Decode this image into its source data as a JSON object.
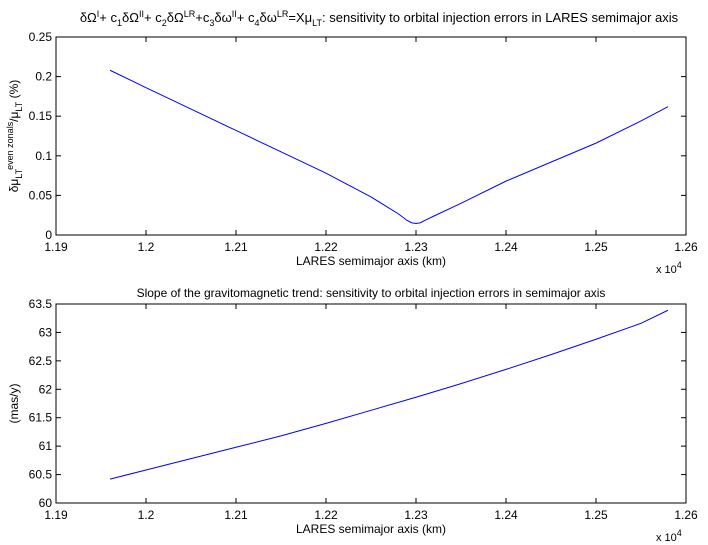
{
  "chart_data": [
    {
      "type": "line",
      "title_parts": [
        {
          "t": "δΩ"
        },
        {
          "t": "I",
          "sup": true
        },
        {
          "t": "+ c"
        },
        {
          "t": "1",
          "sub": true
        },
        {
          "t": "δΩ"
        },
        {
          "t": "II",
          "sup": true
        },
        {
          "t": "+ c"
        },
        {
          "t": "2",
          "sub": true
        },
        {
          "t": "δΩ"
        },
        {
          "t": "LR",
          "sup": true
        },
        {
          "t": "+c"
        },
        {
          "t": "3",
          "sub": true
        },
        {
          "t": "δω"
        },
        {
          "t": "II",
          "sup": true
        },
        {
          "t": "+ c"
        },
        {
          "t": "4",
          "sub": true
        },
        {
          "t": "δω"
        },
        {
          "t": "LR",
          "sup": true
        },
        {
          "t": "=Xμ"
        },
        {
          "t": "LT",
          "sub": true
        },
        {
          "t": ": sensitivity to orbital injection errors in LARES semimajor axis"
        }
      ],
      "xlabel": "LARES semimajor axis (km)",
      "ylabel_parts": [
        {
          "t": "δμ"
        },
        {
          "t": "LT",
          "sub": true
        },
        {
          "t": "even zonals",
          "sup": true
        },
        {
          "t": "/μ"
        },
        {
          "t": "LT",
          "sub": true
        },
        {
          "t": " (%)"
        }
      ],
      "x_multiplier": "x 10",
      "x_multiplier_exp": "4",
      "xlim": [
        1.19,
        1.26
      ],
      "ylim": [
        0,
        0.25
      ],
      "xticks": [
        "1.19",
        "1.2",
        "1.21",
        "1.22",
        "1.23",
        "1.24",
        "1.25",
        "1.26"
      ],
      "yticks": [
        "0",
        "0.05",
        "0.1",
        "0.15",
        "0.2",
        "0.25"
      ],
      "line_color": "#0000ff",
      "x": [
        1.196,
        1.2,
        1.205,
        1.21,
        1.215,
        1.22,
        1.225,
        1.228,
        1.229,
        1.2295,
        1.23,
        1.2305,
        1.231,
        1.232,
        1.235,
        1.24,
        1.245,
        1.25,
        1.255,
        1.258
      ],
      "y": [
        0.208,
        0.186,
        0.159,
        0.132,
        0.105,
        0.078,
        0.048,
        0.027,
        0.0185,
        0.0155,
        0.0145,
        0.0155,
        0.0185,
        0.024,
        0.04,
        0.068,
        0.092,
        0.116,
        0.144,
        0.162
      ]
    },
    {
      "type": "line",
      "title_parts": [
        {
          "t": "Slope of the gravitomagnetic trend: sensitivity to orbital injection errors in semimajor axis"
        }
      ],
      "xlabel": "LARES semimajor axis (km)",
      "ylabel_parts": [
        {
          "t": "(mas/y)"
        }
      ],
      "x_multiplier": "x 10",
      "x_multiplier_exp": "4",
      "xlim": [
        1.19,
        1.26
      ],
      "ylim": [
        60,
        63.5
      ],
      "xticks": [
        "1.19",
        "1.2",
        "1.21",
        "1.22",
        "1.23",
        "1.24",
        "1.25",
        "1.26"
      ],
      "yticks": [
        "60",
        "60.5",
        "61",
        "61.5",
        "62",
        "62.5",
        "63",
        "63.5"
      ],
      "line_color": "#0000ff",
      "x": [
        1.196,
        1.2,
        1.205,
        1.21,
        1.215,
        1.22,
        1.225,
        1.23,
        1.235,
        1.24,
        1.245,
        1.25,
        1.255,
        1.258
      ],
      "y": [
        60.42,
        60.58,
        60.78,
        60.98,
        61.18,
        61.4,
        61.63,
        61.86,
        62.1,
        62.35,
        62.61,
        62.88,
        63.16,
        63.39
      ]
    }
  ]
}
